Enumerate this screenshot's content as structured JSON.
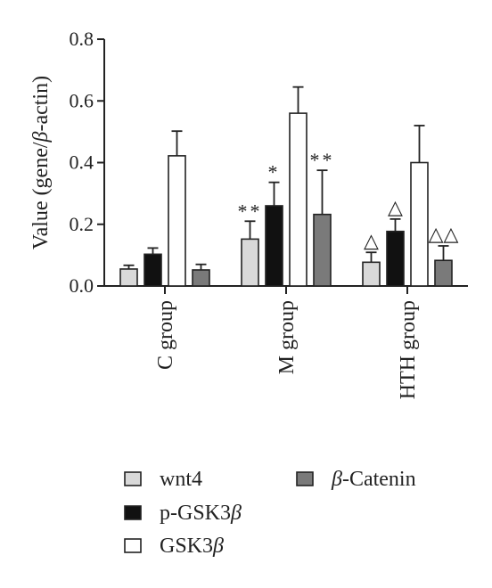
{
  "chart_data": {
    "type": "bar",
    "categories": [
      "C group",
      "M group",
      "HTH group"
    ],
    "ylabel_parts": [
      "Value (gene/",
      "β",
      "-actin)"
    ],
    "ylim": [
      0,
      0.8
    ],
    "yticks": [
      "0.0",
      "0.2",
      "0.4",
      "0.6",
      "0.8"
    ],
    "series": [
      {
        "name": "wnt4",
        "name_parts": [
          "wnt4"
        ],
        "color": "#d9d9d9",
        "values": [
          0.055,
          0.152,
          0.077
        ],
        "errors": [
          0.012,
          0.058,
          0.032
        ],
        "annotations": [
          "",
          "**",
          "△"
        ]
      },
      {
        "name": "p-GSK3β",
        "name_parts": [
          "p-GSK3",
          "β"
        ],
        "color": "#111111",
        "values": [
          0.103,
          0.26,
          0.177
        ],
        "errors": [
          0.02,
          0.076,
          0.04
        ],
        "annotations": [
          "",
          "*",
          "△"
        ]
      },
      {
        "name": "GSK3β",
        "name_parts": [
          "GSK3",
          "β"
        ],
        "color": "#ffffff",
        "values": [
          0.422,
          0.56,
          0.4
        ],
        "errors": [
          0.08,
          0.085,
          0.12
        ],
        "annotations": [
          "",
          "",
          ""
        ]
      },
      {
        "name": "β-Catenin",
        "name_parts": [
          "β",
          "-Catenin"
        ],
        "color": "#7a7a7a",
        "values": [
          0.052,
          0.232,
          0.083
        ],
        "errors": [
          0.018,
          0.143,
          0.047
        ],
        "annotations": [
          "",
          "**",
          "△△"
        ]
      }
    ],
    "legend_position": "bottom",
    "grid": false
  }
}
